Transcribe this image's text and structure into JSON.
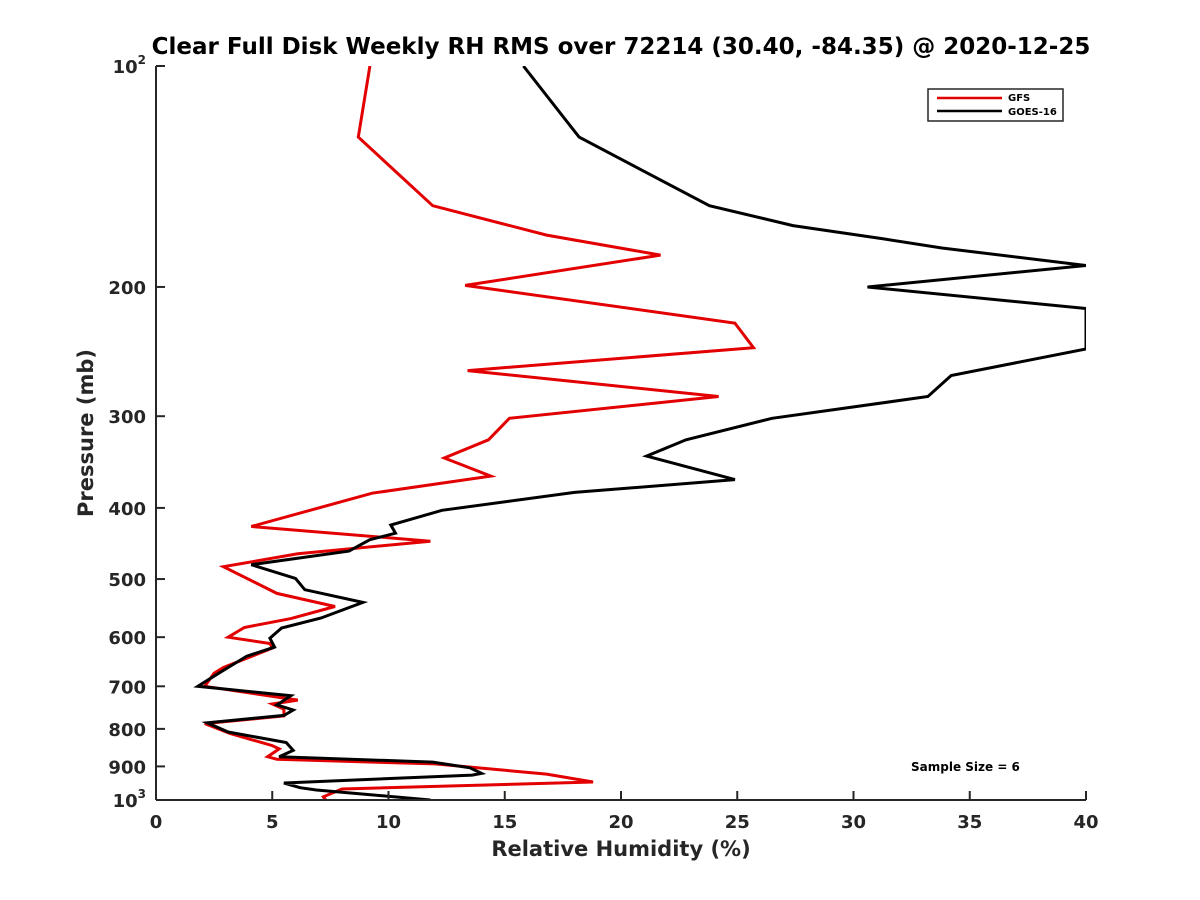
{
  "chart_data": {
    "type": "line",
    "title": "Clear Full Disk Weekly RH RMS over 72214 (30.40, -84.35) @ 2020-12-25",
    "xlabel": "Relative Humidity (%)",
    "ylabel": "Pressure (mb)",
    "xlim": [
      0,
      40
    ],
    "ylim": [
      100,
      1000
    ],
    "yscale": "log",
    "yreversed": true,
    "x_ticks": [
      "0",
      "5",
      "10",
      "15",
      "20",
      "25",
      "30",
      "35",
      "40"
    ],
    "y_ticks": [
      {
        "value": 100,
        "base": "10",
        "exp": "2"
      },
      {
        "value": 200,
        "base": "200",
        "exp": ""
      },
      {
        "value": 300,
        "base": "300",
        "exp": ""
      },
      {
        "value": 400,
        "base": "400",
        "exp": ""
      },
      {
        "value": 500,
        "base": "500",
        "exp": ""
      },
      {
        "value": 600,
        "base": "600",
        "exp": ""
      },
      {
        "value": 700,
        "base": "700",
        "exp": ""
      },
      {
        "value": 800,
        "base": "800",
        "exp": ""
      },
      {
        "value": 900,
        "base": "900",
        "exp": ""
      },
      {
        "value": 1000,
        "base": "10",
        "exp": "3"
      }
    ],
    "legend_position": "top-right",
    "annotation": "Sample Size = 6",
    "series": [
      {
        "name": "GFS",
        "color": "#e30000",
        "points": [
          [
            9.2,
            100
          ],
          [
            8.7,
            125
          ],
          [
            11.9,
            155
          ],
          [
            16.8,
            170
          ],
          [
            21.7,
            181
          ],
          [
            13.3,
            199
          ],
          [
            24.9,
            224
          ],
          [
            25.7,
            242
          ],
          [
            13.4,
            260
          ],
          [
            24.2,
            282
          ],
          [
            15.2,
            302
          ],
          [
            14.3,
            323
          ],
          [
            12.4,
            342
          ],
          [
            14.4,
            362
          ],
          [
            9.3,
            382
          ],
          [
            4.1,
            424
          ],
          [
            11.8,
            444
          ],
          [
            6.1,
            462
          ],
          [
            2.9,
            481
          ],
          [
            5.2,
            523
          ],
          [
            7.7,
            545
          ],
          [
            5.8,
            566
          ],
          [
            3.8,
            582
          ],
          [
            3.1,
            600
          ],
          [
            4.9,
            612
          ],
          [
            5.0,
            621
          ],
          [
            2.9,
            660
          ],
          [
            2.5,
            672
          ],
          [
            2.1,
            700
          ],
          [
            6.1,
            731
          ],
          [
            5.0,
            740
          ],
          [
            5.5,
            752
          ],
          [
            5.5,
            768
          ],
          [
            2.1,
            787
          ],
          [
            3.2,
            812
          ],
          [
            5.0,
            843
          ],
          [
            5.3,
            852
          ],
          [
            4.8,
            873
          ],
          [
            5.2,
            880
          ],
          [
            12.0,
            893
          ],
          [
            16.8,
            922
          ],
          [
            18.8,
            945
          ],
          [
            8.0,
            966
          ],
          [
            7.2,
            990
          ],
          [
            7.3,
            1000
          ]
        ]
      },
      {
        "name": "GOES-16",
        "color": "#000000",
        "points": [
          [
            15.8,
            100
          ],
          [
            18.2,
            125
          ],
          [
            23.8,
            155
          ],
          [
            27.4,
            165
          ],
          [
            31.3,
            172
          ],
          [
            33.8,
            177
          ],
          [
            40.0,
            187
          ],
          [
            30.6,
            200
          ],
          [
            40.0,
            214
          ],
          [
            40.0,
            243
          ],
          [
            34.2,
            264
          ],
          [
            33.2,
            282
          ],
          [
            26.5,
            302
          ],
          [
            22.8,
            323
          ],
          [
            21.1,
            340
          ],
          [
            24.9,
            366
          ],
          [
            18.0,
            381
          ],
          [
            12.3,
            403
          ],
          [
            10.1,
            422
          ],
          [
            10.3,
            433
          ],
          [
            9.2,
            442
          ],
          [
            8.3,
            458
          ],
          [
            4.1,
            478
          ],
          [
            6.0,
            499
          ],
          [
            6.4,
            517
          ],
          [
            8.9,
            538
          ],
          [
            7.1,
            565
          ],
          [
            5.4,
            583
          ],
          [
            4.9,
            602
          ],
          [
            5.1,
            619
          ],
          [
            3.9,
            637
          ],
          [
            3.1,
            660
          ],
          [
            2.6,
            675
          ],
          [
            1.8,
            700
          ],
          [
            5.8,
            721
          ],
          [
            5.2,
            742
          ],
          [
            5.9,
            754
          ],
          [
            5.5,
            767
          ],
          [
            2.2,
            785
          ],
          [
            3.1,
            808
          ],
          [
            5.6,
            835
          ],
          [
            5.9,
            856
          ],
          [
            5.3,
            873
          ],
          [
            11.9,
            888
          ],
          [
            13.5,
            904
          ],
          [
            14.0,
            920
          ],
          [
            13.6,
            925
          ],
          [
            5.5,
            948
          ],
          [
            6.2,
            962
          ],
          [
            6.9,
            969
          ],
          [
            11.8,
            1000
          ]
        ]
      }
    ]
  }
}
